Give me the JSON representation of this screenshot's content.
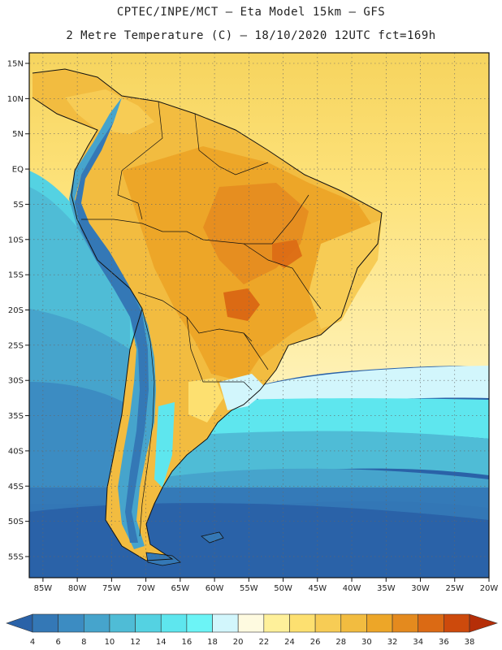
{
  "header": {
    "line1": "CPTEC/INPE/MCT –  Eta Model 15km – GFS",
    "line2": "2 Metre Temperature (C) – 18/10/2020 12UTC fct=169h"
  },
  "map": {
    "lat_labels": [
      "15N",
      "10N",
      "5N",
      "EQ",
      "5S",
      "10S",
      "15S",
      "20S",
      "25S",
      "30S",
      "35S",
      "40S",
      "45S",
      "50S",
      "55S"
    ],
    "lon_labels": [
      "85W",
      "80W",
      "75W",
      "70W",
      "65W",
      "60W",
      "55W",
      "50W",
      "45W",
      "40W",
      "35W",
      "30W",
      "25W",
      "20W"
    ],
    "lat_range": [
      -58,
      16.5
    ],
    "lon_range": [
      -87,
      -20
    ],
    "grid": "dotted"
  },
  "colorbar": {
    "labels": [
      "4",
      "6",
      "8",
      "10",
      "12",
      "14",
      "16",
      "18",
      "20",
      "22",
      "24",
      "26",
      "28",
      "30",
      "32",
      "34",
      "36",
      "38"
    ],
    "colors": [
      "#2a62a8",
      "#3478b6",
      "#3c8cc2",
      "#46a4cc",
      "#4fbcd6",
      "#54d2e2",
      "#5ee6ee",
      "#6cf4f6",
      "#d2f6fc",
      "#fefae0",
      "#fef09a",
      "#fde070",
      "#f7cc55",
      "#f2bc40",
      "#eda628",
      "#e48a1e",
      "#db6a14",
      "#cd4a0c",
      "#b52e08"
    ]
  }
}
